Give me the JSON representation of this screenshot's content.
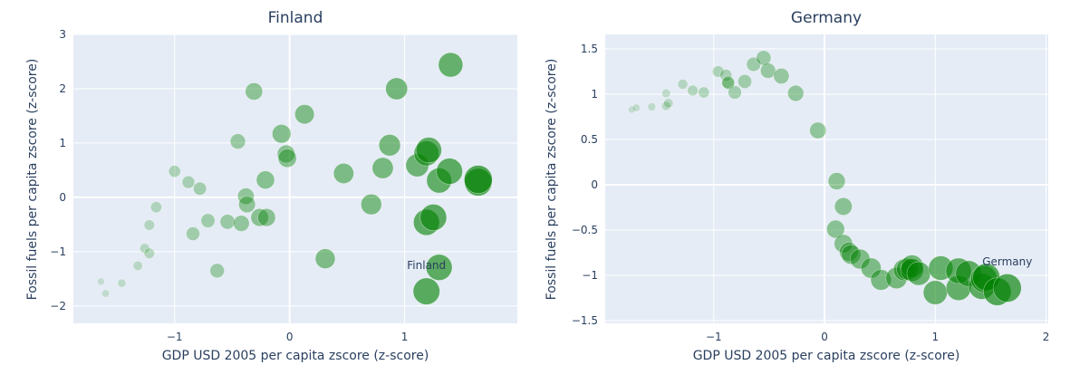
{
  "chart_data": [
    {
      "type": "scatter",
      "title": "Finland",
      "xlabel": "GDP USD 2005 per capita zscore (z-score)",
      "ylabel": "Fossil fuels per capita zscore (z-score)",
      "xlim": [
        -1.88,
        1.98
      ],
      "ylim": [
        -2.32,
        3.0
      ],
      "xticks": [
        {
          "v": -1,
          "label": "−1"
        },
        {
          "v": 0,
          "label": "0"
        },
        {
          "v": 1,
          "label": "1"
        }
      ],
      "yticks": [
        {
          "v": 3,
          "label": "3"
        },
        {
          "v": 2,
          "label": "2"
        },
        {
          "v": 1,
          "label": "1"
        },
        {
          "v": 0,
          "label": "0"
        },
        {
          "v": -1,
          "label": "−1"
        },
        {
          "v": -2,
          "label": "−2"
        }
      ],
      "grid": true,
      "marker_color": "#008000",
      "annotation": {
        "text": "Finland",
        "x": 1.19,
        "y": -1.25
      },
      "points": [
        [
          -1.64,
          -1.55,
          0.0
        ],
        [
          -1.6,
          -1.77,
          0.02
        ],
        [
          -1.46,
          -1.58,
          0.05
        ],
        [
          -1.32,
          -1.26,
          0.1
        ],
        [
          -1.26,
          -0.94,
          0.12
        ],
        [
          -1.22,
          -1.03,
          0.15
        ],
        [
          -1.22,
          -0.51,
          0.15
        ],
        [
          -1.16,
          -0.18,
          0.18
        ],
        [
          -1.0,
          0.48,
          0.22
        ],
        [
          -0.88,
          0.28,
          0.25
        ],
        [
          -0.78,
          0.16,
          0.28
        ],
        [
          -0.84,
          -0.67,
          0.3
        ],
        [
          -0.71,
          -0.43,
          0.32
        ],
        [
          -0.63,
          -1.35,
          0.34
        ],
        [
          -0.54,
          -0.45,
          0.36
        ],
        [
          -0.45,
          1.03,
          0.38
        ],
        [
          -0.42,
          -0.48,
          0.42
        ],
        [
          -0.38,
          0.02,
          0.44
        ],
        [
          -0.37,
          -0.13,
          0.45
        ],
        [
          -0.31,
          1.95,
          0.48
        ],
        [
          -0.26,
          -0.37,
          0.5
        ],
        [
          -0.2,
          -0.37,
          0.5
        ],
        [
          -0.21,
          0.32,
          0.52
        ],
        [
          -0.07,
          1.17,
          0.55
        ],
        [
          -0.03,
          0.8,
          0.5
        ],
        [
          -0.02,
          0.72,
          0.53
        ],
        [
          0.13,
          1.53,
          0.58
        ],
        [
          0.31,
          -1.13,
          0.6
        ],
        [
          0.47,
          0.44,
          0.62
        ],
        [
          0.71,
          -0.13,
          0.64
        ],
        [
          0.81,
          0.54,
          0.66
        ],
        [
          0.87,
          0.96,
          0.68
        ],
        [
          0.93,
          2.0,
          0.7
        ],
        [
          1.11,
          0.59,
          0.75
        ],
        [
          1.19,
          0.81,
          0.85
        ],
        [
          1.21,
          0.87,
          0.88
        ],
        [
          1.19,
          -0.46,
          0.9
        ],
        [
          1.25,
          -0.37,
          0.92
        ],
        [
          1.3,
          0.31,
          0.85
        ],
        [
          1.39,
          0.48,
          0.9
        ],
        [
          1.3,
          -1.29,
          0.9
        ],
        [
          1.19,
          -1.73,
          0.93
        ],
        [
          1.4,
          2.44,
          0.82
        ],
        [
          1.64,
          0.28,
          0.97
        ],
        [
          1.64,
          0.33,
          1.0
        ]
      ]
    },
    {
      "type": "scatter",
      "title": "Germany",
      "xlabel": "GDP USD 2005 per capita zscore (z-score)",
      "ylabel": "Fossil fuels per capita zscore (z-score)",
      "xlim": [
        -1.98,
        2.02
      ],
      "ylim": [
        -1.53,
        1.66
      ],
      "xticks": [
        {
          "v": -1,
          "label": "−1"
        },
        {
          "v": 0,
          "label": "0"
        },
        {
          "v": 1,
          "label": "1"
        },
        {
          "v": 2,
          "label": "2"
        }
      ],
      "yticks": [
        {
          "v": 1.5,
          "label": "1.5"
        },
        {
          "v": 1,
          "label": "1"
        },
        {
          "v": 0.5,
          "label": "0.5"
        },
        {
          "v": 0,
          "label": "0"
        },
        {
          "v": -0.5,
          "label": "−0.5"
        },
        {
          "v": -1,
          "label": "−1"
        },
        {
          "v": -1.5,
          "label": "−1.5"
        }
      ],
      "grid": true,
      "marker_color": "#008000",
      "annotation": {
        "text": "Germany",
        "x": 1.65,
        "y": -0.85
      },
      "points": [
        [
          -1.74,
          0.83,
          0.0
        ],
        [
          -1.7,
          0.85,
          0.02
        ],
        [
          -1.56,
          0.86,
          0.04
        ],
        [
          -1.43,
          1.01,
          0.07
        ],
        [
          -1.43,
          0.87,
          0.09
        ],
        [
          -1.41,
          0.9,
          0.11
        ],
        [
          -1.28,
          1.11,
          0.13
        ],
        [
          -1.19,
          1.04,
          0.16
        ],
        [
          -1.09,
          1.02,
          0.18
        ],
        [
          -0.96,
          1.25,
          0.2
        ],
        [
          -0.89,
          1.21,
          0.22
        ],
        [
          -0.87,
          1.12,
          0.24
        ],
        [
          -0.87,
          1.13,
          0.27
        ],
        [
          -0.81,
          1.02,
          0.29
        ],
        [
          -0.72,
          1.14,
          0.31
        ],
        [
          -0.64,
          1.33,
          0.33
        ],
        [
          -0.55,
          1.4,
          0.36
        ],
        [
          -0.51,
          1.26,
          0.38
        ],
        [
          -0.39,
          1.2,
          0.4
        ],
        [
          -0.26,
          1.01,
          0.42
        ],
        [
          -0.06,
          0.6,
          0.44
        ],
        [
          0.11,
          0.04,
          0.47
        ],
        [
          0.17,
          -0.24,
          0.49
        ],
        [
          0.1,
          -0.49,
          0.51
        ],
        [
          0.17,
          -0.65,
          0.53
        ],
        [
          0.22,
          -0.74,
          0.56
        ],
        [
          0.24,
          -0.77,
          0.58
        ],
        [
          0.32,
          -0.82,
          0.6
        ],
        [
          0.42,
          -0.92,
          0.62
        ],
        [
          0.51,
          -1.05,
          0.64
        ],
        [
          0.65,
          -1.03,
          0.67
        ],
        [
          0.72,
          -0.94,
          0.69
        ],
        [
          0.75,
          -0.93,
          0.71
        ],
        [
          0.79,
          -0.9,
          0.73
        ],
        [
          0.79,
          -0.94,
          0.76
        ],
        [
          0.85,
          -0.98,
          0.78
        ],
        [
          1.0,
          -1.19,
          0.8
        ],
        [
          1.05,
          -0.92,
          0.82
        ],
        [
          1.21,
          -1.14,
          0.84
        ],
        [
          1.21,
          -0.95,
          0.87
        ],
        [
          1.3,
          -0.98,
          0.89
        ],
        [
          1.42,
          -1.12,
          0.91
        ],
        [
          1.44,
          -1.04,
          0.93
        ],
        [
          1.46,
          -1.02,
          0.96
        ],
        [
          1.56,
          -1.18,
          0.98
        ],
        [
          1.65,
          -1.14,
          1.0
        ]
      ]
    }
  ]
}
